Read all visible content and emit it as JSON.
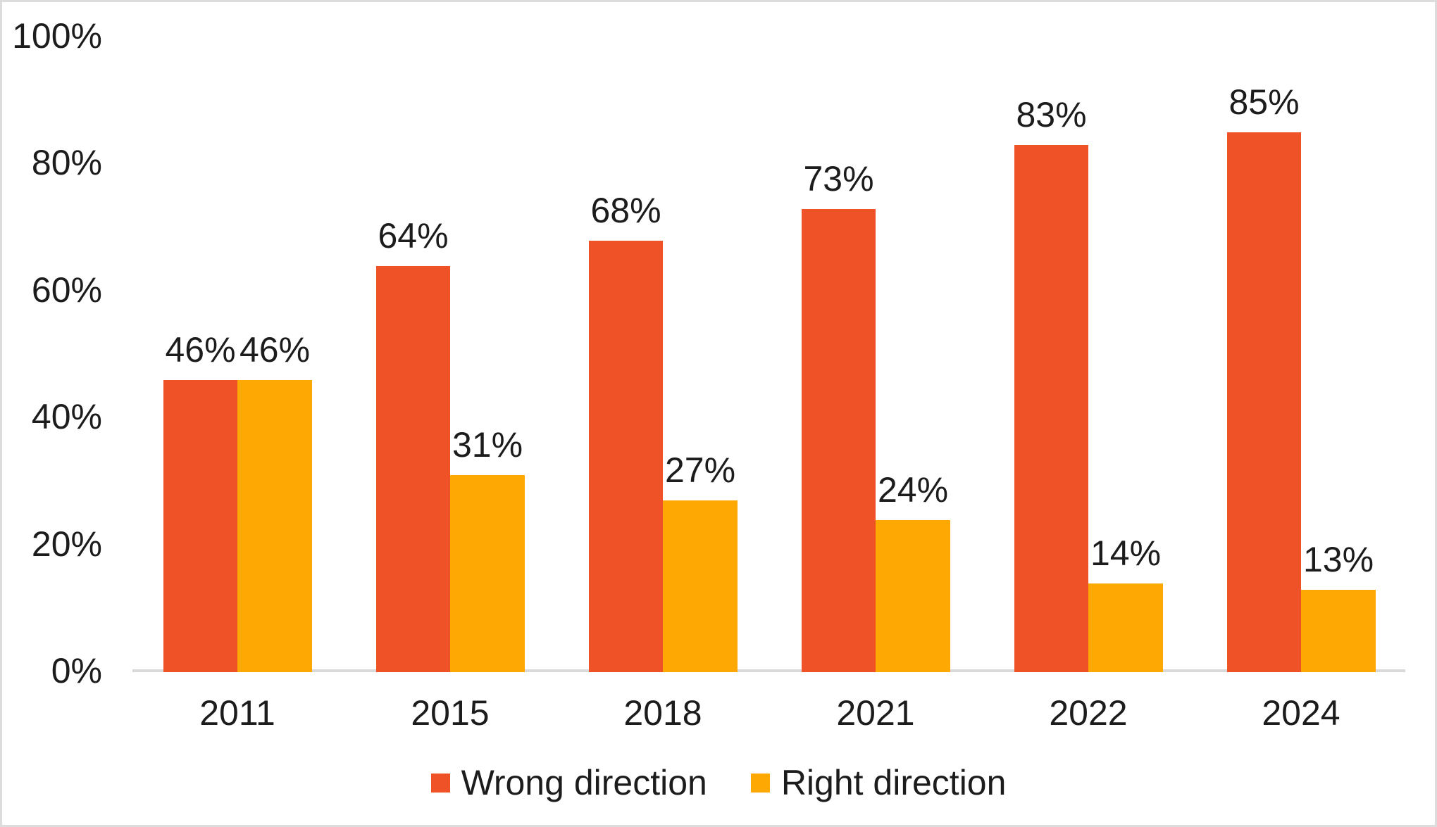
{
  "chart_data": {
    "type": "bar",
    "title": "",
    "categories": [
      "2011",
      "2015",
      "2018",
      "2021",
      "2022",
      "2024"
    ],
    "series": [
      {
        "name": "Wrong direction",
        "color": "#F05228",
        "values": [
          46,
          64,
          68,
          73,
          83,
          85
        ]
      },
      {
        "name": "Right direction",
        "color": "#FEA903",
        "values": [
          46,
          31,
          27,
          24,
          14,
          13
        ]
      }
    ],
    "data_label_suffix": "%",
    "data_labels": "above-bars",
    "y_axis": {
      "tick_labels": [
        "0%",
        "20%",
        "40%",
        "60%",
        "80%",
        "100%"
      ],
      "tick_values": [
        0,
        20,
        40,
        60,
        80,
        100
      ],
      "range": [
        0,
        100
      ]
    },
    "grid": "off",
    "legend_position": "bottom-center"
  },
  "colors": {
    "background": "#FFFFFF",
    "frame_border": "#DCDCDC",
    "axis_line": "#D9D9D9",
    "text": "#1C1C1C"
  }
}
